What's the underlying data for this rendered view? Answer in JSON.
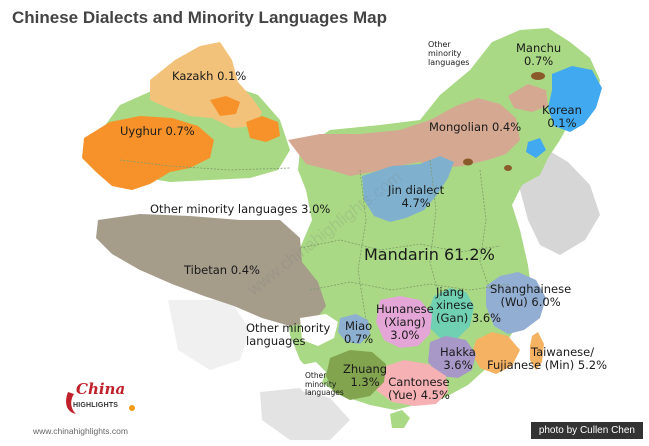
{
  "title": "Chinese Dialects and Minority Languages Map",
  "credit": "photo by Cullen Chen",
  "website": "www.chinahighlights.com",
  "logo": {
    "line1": "China",
    "line2": "HIGHLIGHTS"
  },
  "watermark": "www.chinahighlights.com",
  "colors": {
    "mandarin": "#a9d984",
    "kazakh": "#f3c27a",
    "uyghur": "#f7922b",
    "tibetan": "#a59c8a",
    "mongolian": "#d5a892",
    "korean": "#40a9ef",
    "manchu": "#8b5a2b",
    "jin": "#7fb1cf",
    "wu": "#92aed2",
    "gan": "#6fd0b2",
    "xiang": "#e3a6d7",
    "min": "#f6b263",
    "hakka": "#a898c8",
    "yue": "#f5b1b4",
    "zhuang": "#82a44f",
    "miao": "#8eb0d0"
  },
  "labels": {
    "kazakh": "Kazakh 0.1%",
    "uyghur": "Uyghur 0.7%",
    "other_west": "Other minority languages 3.0%",
    "tibetan": "Tibetan 0.4%",
    "mongolian": "Mongolian 0.4%",
    "manchu_name": "Manchu",
    "manchu_pct": "0.7%",
    "korean_name": "Korean",
    "korean_pct": "0.1%",
    "other_ne_1": "Other",
    "other_ne_2": "minority",
    "other_ne_3": "languages",
    "jin_name": "Jin dialect",
    "jin_pct": "4.7%",
    "mandarin": "Mandarin 61.2%",
    "wu_name": "Shanghainese",
    "wu_pct": "(Wu) 6.0%",
    "gan_1": "Jiang",
    "gan_2": "xinese",
    "gan_3": "(Gan) 3.6%",
    "xiang_1": "Hunanese",
    "xiang_2": "(Xiang)",
    "xiang_3": "3.0%",
    "miao_name": "Miao",
    "miao_pct": "0.7%",
    "other_sw_1": "Other minority",
    "other_sw_2": "languages",
    "hakka_name": "Hakka",
    "hakka_pct": "3.6%",
    "min_1": "Taiwanese/",
    "min_2": "Fujianese (Min) 5.2%",
    "zhuang_name": "Zhuang",
    "zhuang_pct": "1.3%",
    "yue_name": "Cantonese",
    "yue_pct": "(Yue) 4.5%",
    "other_s_1": "Other",
    "other_s_2": "minority",
    "other_s_3": "languages"
  }
}
